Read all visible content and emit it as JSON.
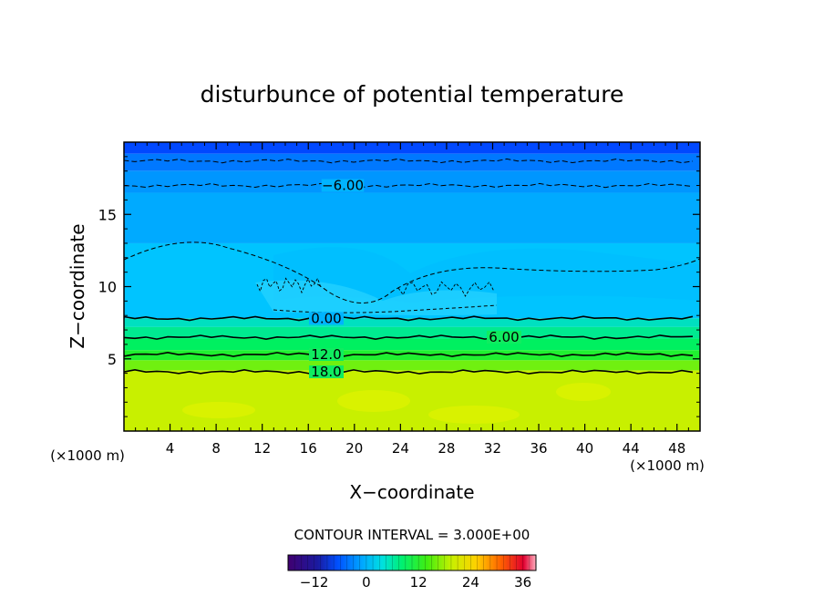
{
  "chart_data": {
    "type": "heatmap",
    "title": "disturbunce of potential temperature",
    "xlabel": "X−coordinate",
    "ylabel": "Z−coordinate",
    "x_unit_left": "(×1000 m)",
    "x_unit_right": "(×1000 m)",
    "xlim": [
      0,
      50
    ],
    "ylim": [
      0,
      20
    ],
    "x_ticks": [
      4,
      8,
      12,
      16,
      20,
      24,
      28,
      32,
      36,
      40,
      44,
      48
    ],
    "y_ticks": [
      5,
      10,
      15
    ],
    "contour_labels": [
      "−6.00",
      "0.00",
      "6.00",
      "12.0",
      "18.0"
    ],
    "contour_interval_text": "CONTOUR INTERVAL = 3.000E+00",
    "colorbar": {
      "range": [
        -18,
        39
      ],
      "tick_labels": [
        "−12",
        "0",
        "12",
        "24",
        "36"
      ],
      "tick_values": [
        -12,
        0,
        12,
        24,
        36
      ]
    },
    "layers": [
      {
        "z_top": 20.0,
        "z_bottom": 19.2,
        "value": -15,
        "color": "#0048ff"
      },
      {
        "z_top": 19.2,
        "z_bottom": 18.0,
        "value": -12,
        "color": "#0078ff"
      },
      {
        "z_top": 18.0,
        "z_bottom": 16.5,
        "value": -9,
        "color": "#0096ff"
      },
      {
        "z_top": 16.5,
        "z_bottom": 13.0,
        "value": -6,
        "color": "#00aaff"
      },
      {
        "z_top": 13.0,
        "z_bottom": 7.8,
        "value": -3,
        "color": "#00c4ff"
      },
      {
        "z_top": 7.8,
        "z_bottom": 7.2,
        "value": 1.5,
        "color": "#00e0c0"
      },
      {
        "z_top": 7.2,
        "z_bottom": 6.4,
        "value": 4.5,
        "color": "#00ea90"
      },
      {
        "z_top": 6.4,
        "z_bottom": 5.6,
        "value": 7.5,
        "color": "#00f060"
      },
      {
        "z_top": 5.6,
        "z_bottom": 4.9,
        "value": 10.5,
        "color": "#20f030"
      },
      {
        "z_top": 4.9,
        "z_bottom": 4.2,
        "value": 13.5,
        "color": "#70f010"
      },
      {
        "z_top": 4.2,
        "z_bottom": 0.0,
        "value": 19.5,
        "color": "#c8f000"
      }
    ],
    "contours": [
      {
        "label": "−6.00",
        "z": 17.0,
        "dashed": true
      },
      {
        "label": "",
        "z": 18.7,
        "dashed": true
      },
      {
        "label": "0.00",
        "z": 7.8,
        "dashed": false
      },
      {
        "label": "6.00",
        "z": 6.5,
        "dashed": false
      },
      {
        "label": "12.0",
        "z": 5.3,
        "dashed": false
      },
      {
        "label": "18.0",
        "z": 4.1,
        "dashed": false
      }
    ]
  }
}
